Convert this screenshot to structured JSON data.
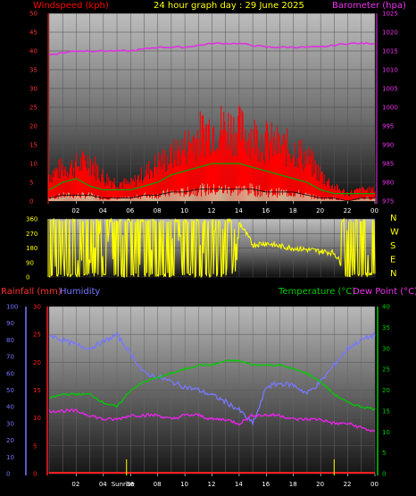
{
  "header": {
    "wind_label": "Windspeed (kph)",
    "title": "24 hour graph day : 29 June 2025",
    "baro_label": "Barometer (hpa)"
  },
  "lower_header": {
    "rain_label": "Rainfall (mm)",
    "humidity_label": "Humidity",
    "temp_label": "Temperature (°C)",
    "dew_label": "Dew Point (°C)"
  },
  "compass": [
    "N",
    "W",
    "S",
    "E",
    "N"
  ],
  "annotations": {
    "sunrise": "Sunrise"
  },
  "colors": {
    "wind": "#ff0000",
    "gust_line": "#00aa00",
    "wind_avg": "#ffffff",
    "barometer": "#dd33dd",
    "direction": "#ffff00",
    "humidity": "#7777ff",
    "temperature": "#00cc00",
    "dewpoint": "#ee22ee",
    "rain": "#ff2020",
    "rain_axis": "#ff2020",
    "humidity_axis": "#7777ff",
    "temp_axis": "#00cc00"
  },
  "chart_data": [
    {
      "type": "area",
      "title": "24 hour graph day : 29 June 2025",
      "x_ticks": [
        "02",
        "04",
        "06",
        "08",
        "10",
        "12",
        "14",
        "16",
        "18",
        "20",
        "22",
        "00"
      ],
      "ylabel": "Windspeed (kph)",
      "ylim": [
        0,
        50
      ],
      "y_ticks": [
        0,
        5,
        10,
        15,
        20,
        25,
        30,
        35,
        40,
        45,
        50
      ],
      "y2label": "Barometer (hpa)",
      "y2lim": [
        975,
        1025
      ],
      "y2_ticks": [
        975,
        980,
        985,
        990,
        995,
        1000,
        1005,
        1010,
        1015,
        1020,
        1025
      ],
      "series": [
        {
          "name": "Windspeed (kph)",
          "axis": "left",
          "hours": [
            0,
            1,
            2,
            3,
            4,
            5,
            6,
            7,
            8,
            9,
            10,
            11,
            12,
            13,
            14,
            15,
            16,
            17,
            18,
            19,
            20,
            21,
            22,
            23,
            24
          ],
          "gust_max": [
            10,
            12,
            13,
            15,
            9,
            7,
            6,
            10,
            14,
            16,
            20,
            24,
            27,
            27,
            26,
            24,
            22,
            20,
            19,
            16,
            10,
            5,
            3,
            4,
            4
          ],
          "wind_mean": [
            3,
            5,
            6,
            4,
            3,
            3,
            3,
            4,
            5,
            7,
            8,
            9,
            10,
            10,
            10,
            9,
            8,
            7,
            6,
            5,
            3,
            2,
            2,
            2,
            2
          ],
          "wind_low": [
            1,
            2,
            2,
            2,
            1,
            1,
            1,
            2,
            2,
            3,
            3,
            4,
            4,
            4,
            4,
            4,
            3,
            3,
            3,
            2,
            1,
            1,
            0,
            1,
            1
          ]
        },
        {
          "name": "Barometer (hpa)",
          "axis": "right",
          "hours": [
            0,
            2,
            4,
            6,
            8,
            10,
            12,
            14,
            16,
            18,
            20,
            22,
            24
          ],
          "values": [
            1014,
            1015,
            1015,
            1015,
            1016,
            1016,
            1017,
            1017,
            1016,
            1016,
            1016,
            1017,
            1017
          ]
        }
      ]
    },
    {
      "type": "scatter",
      "title": "",
      "y_ticks": [
        0,
        90,
        180,
        270,
        360
      ],
      "ylim": [
        0,
        360
      ],
      "series": [
        {
          "name": "Wind direction",
          "hours": [
            0,
            1,
            2,
            3,
            4,
            5,
            6,
            7,
            8,
            9,
            10,
            11,
            12,
            13,
            14,
            15,
            16,
            17,
            18,
            19,
            20,
            21,
            22,
            23,
            24
          ],
          "values": [
            350,
            10,
            345,
            15,
            340,
            20,
            355,
            5,
            350,
            15,
            345,
            10,
            350,
            20,
            340,
            200,
            210,
            190,
            180,
            170,
            160,
            150,
            20,
            350,
            10
          ]
        }
      ]
    },
    {
      "type": "line",
      "title": "",
      "x_ticks": [
        "02",
        "04",
        "06",
        "08",
        "10",
        "12",
        "14",
        "16",
        "18",
        "20",
        "22",
        "00"
      ],
      "y_rain_ticks": [
        0,
        5,
        10,
        15,
        20,
        25,
        30
      ],
      "rain_lim": [
        0,
        30
      ],
      "y_hum_ticks": [
        0,
        10,
        20,
        30,
        40,
        50,
        60,
        70,
        80,
        90,
        100
      ],
      "hum_lim": [
        0,
        100
      ],
      "y_temp_ticks": [
        0,
        5,
        10,
        15,
        20,
        25,
        30,
        35,
        40
      ],
      "temp_lim": [
        0,
        40
      ],
      "series": [
        {
          "name": "Humidity",
          "axis": "humidity",
          "hours": [
            0,
            1,
            2,
            3,
            4,
            5,
            6,
            7,
            8,
            9,
            10,
            11,
            12,
            13,
            14,
            15,
            15.5,
            16,
            17,
            18,
            19,
            20,
            21,
            22,
            23,
            24
          ],
          "values": [
            83,
            80,
            77,
            75,
            79,
            83,
            72,
            60,
            58,
            55,
            52,
            50,
            47,
            43,
            38,
            30,
            40,
            52,
            54,
            53,
            48,
            55,
            65,
            75,
            80,
            83
          ]
        },
        {
          "name": "Temperature (°C)",
          "axis": "temp",
          "hours": [
            0,
            1,
            2,
            3,
            4,
            5,
            6,
            7,
            8,
            9,
            10,
            11,
            12,
            13,
            14,
            15,
            16,
            17,
            18,
            19,
            20,
            21,
            22,
            23,
            24
          ],
          "values": [
            18,
            19,
            19,
            19,
            17,
            16,
            20,
            22,
            23,
            24,
            25,
            26,
            26,
            27,
            27,
            26,
            26,
            26,
            25,
            24,
            22,
            19,
            17,
            16,
            15.5
          ]
        },
        {
          "name": "Dew Point (°C)",
          "axis": "temp",
          "hours": [
            0,
            1,
            2,
            3,
            4,
            5,
            6,
            7,
            8,
            9,
            10,
            11,
            12,
            13,
            14,
            15,
            16,
            17,
            18,
            19,
            20,
            21,
            22,
            23,
            24
          ],
          "values": [
            15,
            15,
            15,
            14,
            13,
            13,
            14,
            14,
            14,
            13,
            14,
            14,
            13,
            13,
            12,
            14,
            14,
            14,
            13,
            13,
            13,
            12,
            12,
            11,
            10
          ]
        },
        {
          "name": "Rainfall (mm)",
          "axis": "rain",
          "hours": [
            0,
            24
          ],
          "values": [
            0,
            0
          ]
        }
      ],
      "annotations": [
        "Sunrise"
      ]
    }
  ]
}
